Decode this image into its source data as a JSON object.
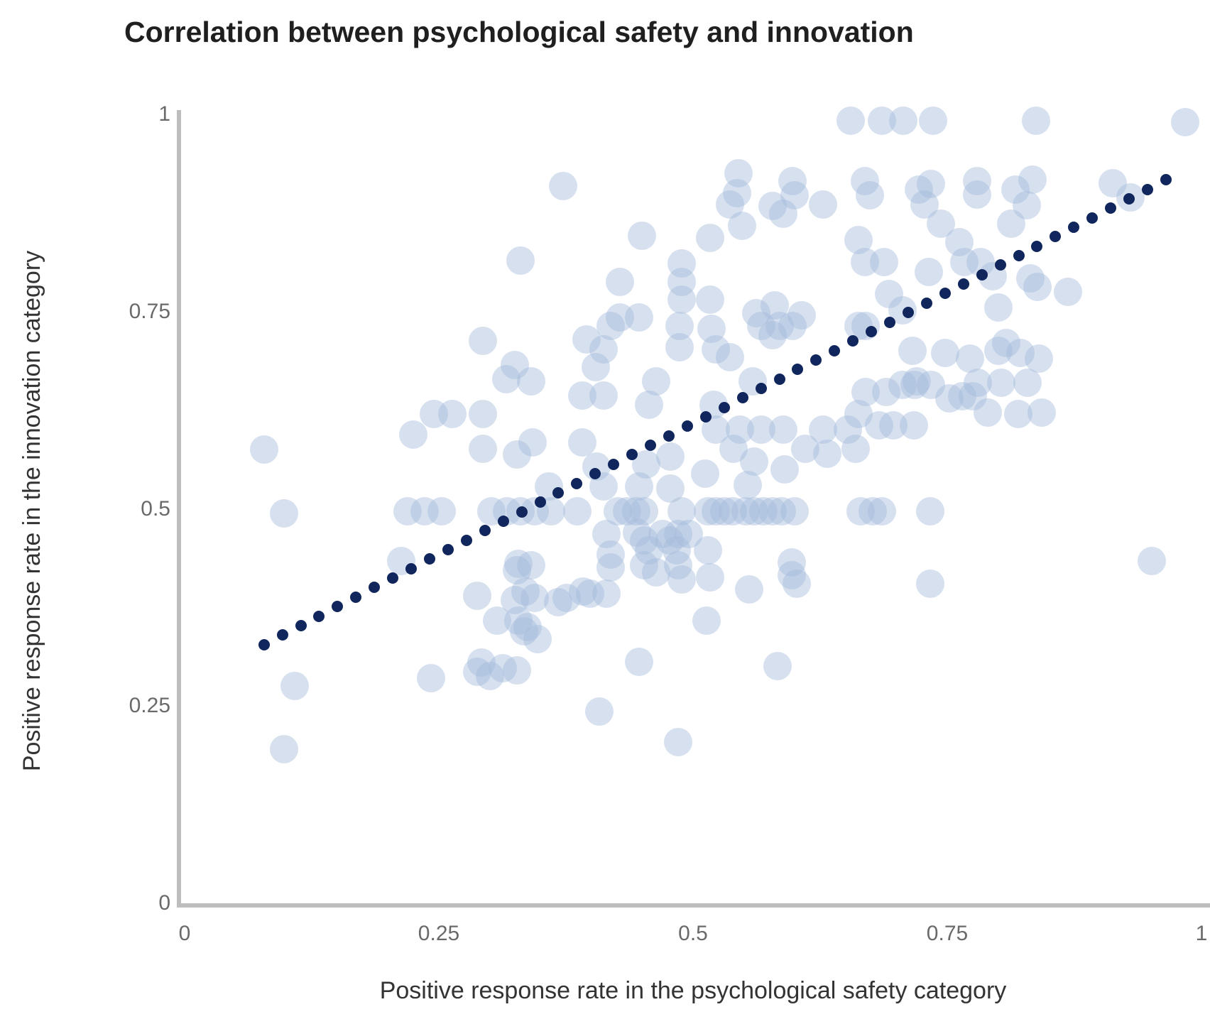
{
  "chart_data": {
    "type": "scatter",
    "title": "Correlation between psychological safety and innovation",
    "xlabel": "Positive response rate in the psychological safety category",
    "ylabel": "Positive response rate in the innovation category",
    "xlim": [
      0,
      1
    ],
    "ylim": [
      0,
      1
    ],
    "grid": false,
    "legend": "none",
    "x_tick_labels": [
      "0",
      "0.25",
      "0.5",
      "0.75",
      "1"
    ],
    "x_tick_values": [
      0,
      0.25,
      0.5,
      0.75,
      1
    ],
    "y_tick_labels": [
      "0",
      "0.25",
      "0.5",
      "0.75",
      "1"
    ],
    "y_tick_values": [
      0,
      0.25,
      0.5,
      0.75,
      1
    ],
    "colors": {
      "scatter_fill": "#d6e0ef",
      "trendline": "#10265c",
      "axis_line": "#bdbdbd",
      "tick_label": "#6a6a6a",
      "axis_title": "#333333",
      "title": "#1f1f1f"
    },
    "series": [
      {
        "name": "teams",
        "type": "scatter",
        "marker_radius_px": 20,
        "points": [
          [
            0.078,
            0.575
          ],
          [
            0.098,
            0.494
          ],
          [
            0.108,
            0.275
          ],
          [
            0.098,
            0.195
          ],
          [
            0.655,
            0.992
          ],
          [
            0.686,
            0.992
          ],
          [
            0.707,
            0.992
          ],
          [
            0.736,
            0.992
          ],
          [
            0.837,
            0.992
          ],
          [
            0.984,
            0.99
          ],
          [
            0.372,
            0.909
          ],
          [
            0.545,
            0.925
          ],
          [
            0.543,
            0.9
          ],
          [
            0.598,
            0.915
          ],
          [
            0.6,
            0.897
          ],
          [
            0.669,
            0.915
          ],
          [
            0.674,
            0.897
          ],
          [
            0.722,
            0.905
          ],
          [
            0.734,
            0.912
          ],
          [
            0.779,
            0.915
          ],
          [
            0.779,
            0.898
          ],
          [
            0.817,
            0.905
          ],
          [
            0.834,
            0.917
          ],
          [
            0.913,
            0.913
          ],
          [
            0.93,
            0.895
          ],
          [
            0.828,
            0.885
          ],
          [
            0.45,
            0.846
          ],
          [
            0.536,
            0.886
          ],
          [
            0.578,
            0.884
          ],
          [
            0.589,
            0.874
          ],
          [
            0.628,
            0.886
          ],
          [
            0.548,
            0.859
          ],
          [
            0.517,
            0.843
          ],
          [
            0.663,
            0.841
          ],
          [
            0.728,
            0.886
          ],
          [
            0.744,
            0.861
          ],
          [
            0.813,
            0.861
          ],
          [
            0.762,
            0.838
          ],
          [
            0.33,
            0.815
          ],
          [
            0.428,
            0.788
          ],
          [
            0.489,
            0.811
          ],
          [
            0.489,
            0.788
          ],
          [
            0.669,
            0.813
          ],
          [
            0.688,
            0.813
          ],
          [
            0.767,
            0.813
          ],
          [
            0.783,
            0.813
          ],
          [
            0.795,
            0.795
          ],
          [
            0.732,
            0.8
          ],
          [
            0.832,
            0.792
          ],
          [
            0.839,
            0.781
          ],
          [
            0.869,
            0.775
          ],
          [
            0.8,
            0.755
          ],
          [
            0.489,
            0.765
          ],
          [
            0.517,
            0.765
          ],
          [
            0.428,
            0.743
          ],
          [
            0.447,
            0.743
          ],
          [
            0.562,
            0.748
          ],
          [
            0.58,
            0.758
          ],
          [
            0.693,
            0.772
          ],
          [
            0.706,
            0.752
          ],
          [
            0.808,
            0.71
          ],
          [
            0.419,
            0.732
          ],
          [
            0.487,
            0.732
          ],
          [
            0.518,
            0.728
          ],
          [
            0.567,
            0.732
          ],
          [
            0.585,
            0.732
          ],
          [
            0.598,
            0.732
          ],
          [
            0.607,
            0.745
          ],
          [
            0.663,
            0.732
          ],
          [
            0.67,
            0.732
          ],
          [
            0.487,
            0.705
          ],
          [
            0.293,
            0.713
          ],
          [
            0.395,
            0.715
          ],
          [
            0.412,
            0.702
          ],
          [
            0.522,
            0.702
          ],
          [
            0.536,
            0.692
          ],
          [
            0.578,
            0.72
          ],
          [
            0.325,
            0.682
          ],
          [
            0.404,
            0.68
          ],
          [
            0.716,
            0.7
          ],
          [
            0.748,
            0.698
          ],
          [
            0.772,
            0.69
          ],
          [
            0.8,
            0.7
          ],
          [
            0.822,
            0.698
          ],
          [
            0.84,
            0.69
          ],
          [
            0.72,
            0.662
          ],
          [
            0.78,
            0.66
          ],
          [
            0.803,
            0.66
          ],
          [
            0.829,
            0.66
          ],
          [
            0.752,
            0.64
          ],
          [
            0.79,
            0.622
          ],
          [
            0.82,
            0.62
          ],
          [
            0.843,
            0.622
          ],
          [
            0.559,
            0.662
          ],
          [
            0.52,
            0.632
          ],
          [
            0.464,
            0.662
          ],
          [
            0.457,
            0.632
          ],
          [
            0.412,
            0.644
          ],
          [
            0.391,
            0.644
          ],
          [
            0.341,
            0.662
          ],
          [
            0.316,
            0.664
          ],
          [
            0.245,
            0.62
          ],
          [
            0.263,
            0.62
          ],
          [
            0.293,
            0.62
          ],
          [
            0.67,
            0.648
          ],
          [
            0.69,
            0.648
          ],
          [
            0.706,
            0.657
          ],
          [
            0.718,
            0.657
          ],
          [
            0.734,
            0.657
          ],
          [
            0.765,
            0.643
          ],
          [
            0.775,
            0.643
          ],
          [
            0.663,
            0.62
          ],
          [
            0.683,
            0.606
          ],
          [
            0.697,
            0.606
          ],
          [
            0.717,
            0.606
          ],
          [
            0.225,
            0.594
          ],
          [
            0.293,
            0.576
          ],
          [
            0.391,
            0.584
          ],
          [
            0.342,
            0.584
          ],
          [
            0.327,
            0.569
          ],
          [
            0.405,
            0.554
          ],
          [
            0.412,
            0.528
          ],
          [
            0.358,
            0.528
          ],
          [
            0.454,
            0.556
          ],
          [
            0.447,
            0.528
          ],
          [
            0.478,
            0.566
          ],
          [
            0.478,
            0.526
          ],
          [
            0.522,
            0.6
          ],
          [
            0.546,
            0.6
          ],
          [
            0.567,
            0.6
          ],
          [
            0.589,
            0.6
          ],
          [
            0.54,
            0.576
          ],
          [
            0.56,
            0.56
          ],
          [
            0.512,
            0.545
          ],
          [
            0.554,
            0.53
          ],
          [
            0.59,
            0.55
          ],
          [
            0.61,
            0.576
          ],
          [
            0.632,
            0.57
          ],
          [
            0.628,
            0.6
          ],
          [
            0.652,
            0.6
          ],
          [
            0.66,
            0.576
          ],
          [
            0.219,
            0.497
          ],
          [
            0.236,
            0.497
          ],
          [
            0.253,
            0.497
          ],
          [
            0.302,
            0.497
          ],
          [
            0.317,
            0.497
          ],
          [
            0.33,
            0.497
          ],
          [
            0.344,
            0.497
          ],
          [
            0.36,
            0.497
          ],
          [
            0.386,
            0.497
          ],
          [
            0.426,
            0.497
          ],
          [
            0.435,
            0.497
          ],
          [
            0.444,
            0.497
          ],
          [
            0.452,
            0.497
          ],
          [
            0.489,
            0.497
          ],
          [
            0.515,
            0.497
          ],
          [
            0.522,
            0.497
          ],
          [
            0.531,
            0.497
          ],
          [
            0.539,
            0.497
          ],
          [
            0.552,
            0.497
          ],
          [
            0.56,
            0.497
          ],
          [
            0.569,
            0.497
          ],
          [
            0.578,
            0.497
          ],
          [
            0.587,
            0.497
          ],
          [
            0.6,
            0.497
          ],
          [
            0.665,
            0.497
          ],
          [
            0.677,
            0.497
          ],
          [
            0.686,
            0.497
          ],
          [
            0.733,
            0.497
          ],
          [
            0.415,
            0.468
          ],
          [
            0.445,
            0.47
          ],
          [
            0.452,
            0.46
          ],
          [
            0.457,
            0.447
          ],
          [
            0.47,
            0.468
          ],
          [
            0.477,
            0.46
          ],
          [
            0.485,
            0.468
          ],
          [
            0.496,
            0.468
          ],
          [
            0.419,
            0.442
          ],
          [
            0.419,
            0.426
          ],
          [
            0.452,
            0.428
          ],
          [
            0.464,
            0.419
          ],
          [
            0.484,
            0.447
          ],
          [
            0.485,
            0.428
          ],
          [
            0.489,
            0.41
          ],
          [
            0.515,
            0.447
          ],
          [
            0.517,
            0.413
          ],
          [
            0.415,
            0.392
          ],
          [
            0.328,
            0.43
          ],
          [
            0.341,
            0.428
          ],
          [
            0.335,
            0.395
          ],
          [
            0.344,
            0.387
          ],
          [
            0.367,
            0.382
          ],
          [
            0.376,
            0.387
          ],
          [
            0.392,
            0.395
          ],
          [
            0.399,
            0.392
          ],
          [
            0.213,
            0.434
          ],
          [
            0.327,
            0.422
          ],
          [
            0.555,
            0.398
          ],
          [
            0.597,
            0.432
          ],
          [
            0.597,
            0.416
          ],
          [
            0.602,
            0.405
          ],
          [
            0.951,
            0.434
          ],
          [
            0.733,
            0.405
          ],
          [
            0.288,
            0.39
          ],
          [
            0.307,
            0.358
          ],
          [
            0.325,
            0.384
          ],
          [
            0.334,
            0.345
          ],
          [
            0.328,
            0.358
          ],
          [
            0.337,
            0.35
          ],
          [
            0.347,
            0.335
          ],
          [
            0.513,
            0.358
          ],
          [
            0.292,
            0.305
          ],
          [
            0.3,
            0.288
          ],
          [
            0.313,
            0.298
          ],
          [
            0.327,
            0.295
          ],
          [
            0.288,
            0.293
          ],
          [
            0.242,
            0.285
          ],
          [
            0.447,
            0.306
          ],
          [
            0.583,
            0.301
          ],
          [
            0.408,
            0.243
          ],
          [
            0.485,
            0.204
          ]
        ]
      },
      {
        "name": "trendline",
        "type": "dotted_line",
        "marker_radius_px": 8,
        "dot_count": 50,
        "start": [
          0.078,
          0.328
        ],
        "end": [
          0.965,
          0.917
        ]
      }
    ]
  }
}
